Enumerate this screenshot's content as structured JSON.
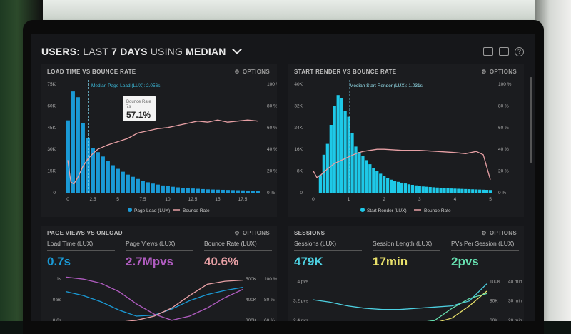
{
  "header": {
    "users_label": "USERS:",
    "range_label": "LAST",
    "range_value": "7 DAYS",
    "using_label": "USING",
    "method_label": "MEDIAN"
  },
  "colors": {
    "cyan": "#1ec9e8",
    "blue": "#1a9ad6",
    "pink": "#e8a0a5",
    "purple": "#b05cc0",
    "yellow": "#e8e06a",
    "green": "#66e0b0",
    "teal": "#4dd0e1"
  },
  "options_label": "OPTIONS",
  "panel1": {
    "title": "LOAD TIME VS BOUNCE RATE",
    "median_label": "Median Page Load (LUX): 2.056s",
    "tooltip_title": "Bounce Rate",
    "tooltip_sub": "7s",
    "tooltip_value": "57.1%",
    "legend_bar": "Page Load (LUX)",
    "legend_line": "Bounce Rate"
  },
  "panel2": {
    "title": "START RENDER VS BOUNCE RATE",
    "median_label": "Median Start Render (LUX): 1.031s",
    "legend_bar": "Start Render (LUX)",
    "legend_line": "Bounce Rate"
  },
  "panel3": {
    "title": "PAGE VIEWS VS ONLOAD",
    "metrics": [
      {
        "label": "Load Time (LUX)",
        "value": "0.7s"
      },
      {
        "label": "Page Views (LUX)",
        "value": "2.7Mpvs"
      },
      {
        "label": "Bounce Rate (LUX)",
        "value": "40.6%"
      }
    ]
  },
  "panel4": {
    "title": "SESSIONS",
    "metrics": [
      {
        "label": "Sessions (LUX)",
        "value": "479K"
      },
      {
        "label": "Session Length (LUX)",
        "value": "17min"
      },
      {
        "label": "PVs Per Session (LUX)",
        "value": "2pvs"
      }
    ]
  },
  "chart_data": [
    {
      "type": "bar",
      "title": "LOAD TIME VS BOUNCE RATE",
      "x_ticks": [
        "0",
        "2.5",
        "5",
        "7.5",
        "10",
        "12.5",
        "15",
        "17.5"
      ],
      "x_range": [
        -0.5,
        19.5
      ],
      "y_ticks_left": [
        "0",
        "15K",
        "30K",
        "45K",
        "60K",
        "75K"
      ],
      "y_range_left": [
        0,
        75000
      ],
      "y_ticks_right": [
        "0 %",
        "20 %",
        "40 %",
        "60 %",
        "80 %",
        "100 %"
      ],
      "y_range_right": [
        0,
        100
      ],
      "bar_width": 0.42,
      "series": [
        {
          "name": "Page Load (LUX)",
          "kind": "bar",
          "x": [
            0,
            0.5,
            1,
            1.5,
            2,
            2.5,
            3,
            3.5,
            4,
            4.5,
            5,
            5.5,
            6,
            6.5,
            7,
            7.5,
            8,
            8.5,
            9,
            9.5,
            10,
            10.5,
            11,
            11.5,
            12,
            12.5,
            13,
            13.5,
            14,
            14.5,
            15,
            15.5,
            16,
            16.5,
            17,
            17.5,
            18,
            18.5,
            19
          ],
          "values": [
            50000,
            70000,
            66000,
            48000,
            38000,
            31000,
            28000,
            25000,
            22000,
            19000,
            16500,
            14500,
            12500,
            11000,
            9500,
            8300,
            7200,
            6300,
            5600,
            5000,
            4500,
            4100,
            3700,
            3400,
            3100,
            2900,
            2700,
            2500,
            2300,
            2200,
            2100,
            2000,
            1900,
            1800,
            1700,
            1600,
            1500,
            1450,
            1400
          ]
        },
        {
          "name": "Bounce Rate",
          "kind": "line",
          "x": [
            0,
            0.3,
            0.6,
            1,
            1.5,
            2,
            2.5,
            3,
            4,
            5,
            6,
            7,
            8,
            9,
            10,
            11,
            12,
            13,
            14,
            15,
            16,
            17,
            18,
            19
          ],
          "values": [
            30,
            10,
            8,
            14,
            24,
            31,
            36,
            40,
            44,
            47,
            50,
            55,
            57,
            59,
            60,
            62,
            64,
            66,
            65,
            67,
            65,
            66,
            67,
            66
          ]
        }
      ],
      "median": 2.056
    },
    {
      "type": "bar",
      "title": "START RENDER VS BOUNCE RATE",
      "x_ticks": [
        "0",
        "1",
        "2",
        "3",
        "4",
        "5"
      ],
      "x_range": [
        -0.1,
        5.1
      ],
      "y_ticks_left": [
        "0",
        "8K",
        "16K",
        "24K",
        "32K",
        "40K"
      ],
      "y_range_left": [
        0,
        40000
      ],
      "y_ticks_right": [
        "0 %",
        "20 %",
        "40 %",
        "60 %",
        "80 %",
        "100 %"
      ],
      "y_range_right": [
        0,
        100
      ],
      "bar_width": 0.085,
      "series": [
        {
          "name": "Start Render (LUX)",
          "kind": "bar",
          "x": [
            0.2,
            0.3,
            0.4,
            0.5,
            0.6,
            0.7,
            0.8,
            0.9,
            1.0,
            1.1,
            1.2,
            1.3,
            1.4,
            1.5,
            1.6,
            1.7,
            1.8,
            1.9,
            2.0,
            2.1,
            2.2,
            2.3,
            2.4,
            2.5,
            2.6,
            2.7,
            2.8,
            2.9,
            3.0,
            3.1,
            3.2,
            3.3,
            3.4,
            3.5,
            3.6,
            3.7,
            3.8,
            3.9,
            4.0,
            4.1,
            4.2,
            4.3,
            4.4,
            4.5,
            4.6,
            4.7,
            4.8,
            4.9,
            5.0
          ],
          "values": [
            6500,
            14000,
            18000,
            25000,
            32000,
            36000,
            35000,
            30000,
            28000,
            22000,
            17000,
            15000,
            13500,
            12000,
            10500,
            9000,
            8000,
            7000,
            6300,
            5500,
            4800,
            4300,
            4000,
            3700,
            3400,
            3100,
            2900,
            2700,
            2500,
            2300,
            2200,
            2100,
            2000,
            1900,
            1800,
            1700,
            1600,
            1550,
            1500,
            1450,
            1400,
            1350,
            1300,
            1250,
            1200,
            1150,
            1100,
            1050,
            1000
          ]
        },
        {
          "name": "Bounce Rate",
          "kind": "line",
          "x": [
            0,
            0.1,
            0.2,
            0.4,
            0.6,
            0.8,
            1.0,
            1.2,
            1.4,
            1.6,
            1.8,
            2.0,
            2.5,
            3.0,
            3.5,
            4.0,
            4.3,
            4.6,
            4.8,
            5.0
          ],
          "values": [
            20,
            14,
            16,
            22,
            27,
            30,
            33,
            36,
            38,
            39,
            40,
            40,
            39,
            39,
            38,
            37,
            36,
            38,
            35,
            12
          ]
        }
      ],
      "median": 1.031
    },
    {
      "type": "line",
      "title": "PAGE VIEWS VS ONLOAD",
      "y_ticks_left": [
        "1s",
        "0.8s",
        "0.6s"
      ],
      "y_range_left": [
        0.55,
        1.05
      ],
      "y_ticks_mid": [
        "500K",
        "400K",
        "300K"
      ],
      "y_ticks_right": [
        "100 %",
        "80 %",
        "60 %"
      ],
      "series": [
        {
          "name": "Load Time (LUX)",
          "kind": "line",
          "x": [
            0,
            1,
            2,
            3,
            4,
            5,
            6,
            7,
            8,
            9,
            10
          ],
          "values": [
            0.88,
            0.84,
            0.78,
            0.7,
            0.64,
            0.65,
            0.71,
            0.79,
            0.85,
            0.89,
            0.92
          ]
        },
        {
          "name": "Page Views (LUX)",
          "kind": "line",
          "x": [
            0,
            1,
            2,
            3,
            4,
            5,
            6,
            7,
            8,
            9,
            10
          ],
          "values": [
            1.02,
            1.0,
            0.96,
            0.88,
            0.76,
            0.66,
            0.6,
            0.64,
            0.72,
            0.82,
            0.9
          ]
        },
        {
          "name": "Bounce Rate (LUX)",
          "kind": "line",
          "x": [
            0,
            1,
            2,
            3,
            4,
            5,
            6,
            7,
            8,
            9,
            10
          ],
          "values": [
            0.56,
            0.56,
            0.57,
            0.58,
            0.6,
            0.64,
            0.72,
            0.84,
            0.95,
            0.98,
            0.99
          ]
        }
      ]
    },
    {
      "type": "line",
      "title": "SESSIONS",
      "y_ticks_left": [
        "4 pvs",
        "3.2 pvs",
        "2.4 pvs"
      ],
      "y_range_left": [
        2.2,
        4.3
      ],
      "y_ticks_mid": [
        "100K",
        "80K",
        "60K"
      ],
      "y_ticks_right": [
        "40 min",
        "30 min",
        "20 min"
      ],
      "series": [
        {
          "name": "Sessions (LUX)",
          "kind": "line",
          "x": [
            0,
            1,
            2,
            3,
            4,
            5,
            6,
            7,
            8,
            9,
            10
          ],
          "values": [
            3.25,
            3.15,
            3.0,
            2.9,
            2.85,
            2.85,
            2.9,
            2.95,
            3.0,
            3.2,
            3.9
          ]
        },
        {
          "name": "Session Length (LUX)",
          "kind": "line",
          "x": [
            0,
            1,
            2,
            3,
            4,
            5,
            6,
            7,
            8,
            9,
            10
          ],
          "values": [
            2.3,
            2.3,
            2.3,
            2.3,
            2.3,
            2.3,
            2.3,
            2.3,
            2.5,
            3.0,
            3.6
          ]
        },
        {
          "name": "PVs Per Session (LUX)",
          "kind": "line",
          "x": [
            0,
            1,
            2,
            3,
            4,
            5,
            6,
            7,
            8,
            9,
            10
          ],
          "values": [
            2.3,
            2.3,
            2.3,
            2.3,
            2.3,
            2.3,
            2.3,
            2.4,
            2.9,
            3.3,
            3.5
          ]
        }
      ]
    }
  ]
}
